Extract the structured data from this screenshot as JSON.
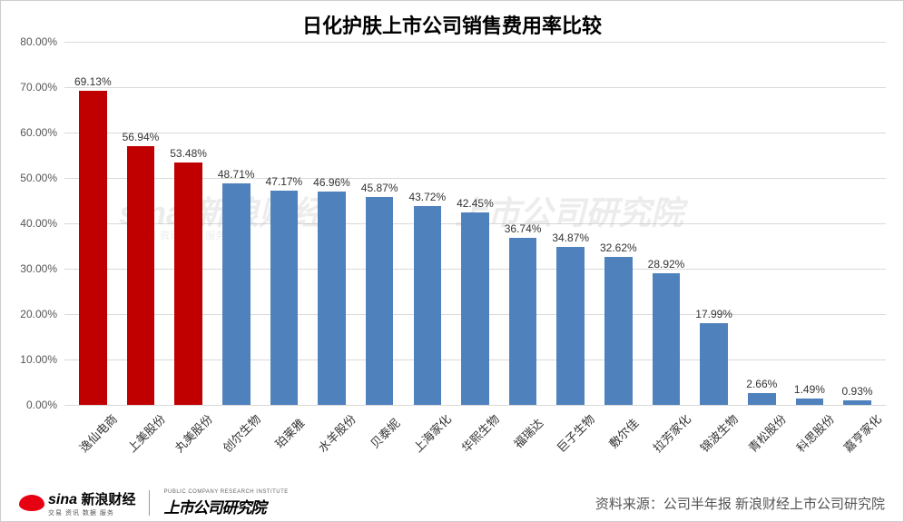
{
  "chart": {
    "type": "bar",
    "title": "日化护肤上市公司销售费用率比较",
    "title_fontsize": 22,
    "background_color": "#ffffff",
    "grid_color": "#d9d9d9",
    "text_color": "#555555",
    "ylim": [
      0,
      80
    ],
    "ytick_step": 10,
    "y_format": "percent_2dp",
    "yticks": [
      "0.00%",
      "10.00%",
      "20.00%",
      "30.00%",
      "40.00%",
      "50.00%",
      "60.00%",
      "70.00%",
      "80.00%"
    ],
    "label_fontsize": 12,
    "xlabel_fontsize": 13,
    "xlabel_rotation": -45,
    "bar_width_ratio": 0.58,
    "colors": {
      "highlight": "#c00000",
      "normal": "#4f81bd"
    },
    "categories": [
      "逸仙电商",
      "上美股份",
      "丸美股份",
      "创尔生物",
      "珀莱雅",
      "水羊股份",
      "贝泰妮",
      "上海家化",
      "华熙生物",
      "福瑞达",
      "巨子生物",
      "敷尔佳",
      "拉芳家化",
      "锦波生物",
      "青松股份",
      "科思股份",
      "嘉亨家化"
    ],
    "values": [
      69.13,
      56.94,
      53.48,
      48.71,
      47.17,
      46.96,
      45.87,
      43.72,
      42.45,
      36.74,
      34.87,
      32.62,
      28.92,
      17.99,
      2.66,
      1.49,
      0.93
    ],
    "value_labels": [
      "69.13%",
      "56.94%",
      "53.48%",
      "48.71%",
      "47.17%",
      "46.96%",
      "45.87%",
      "43.72%",
      "42.45%",
      "36.74%",
      "34.87%",
      "32.62%",
      "28.92%",
      "17.99%",
      "2.66%",
      "1.49%",
      "0.93%"
    ],
    "bar_color_keys": [
      "highlight",
      "highlight",
      "highlight",
      "normal",
      "normal",
      "normal",
      "normal",
      "normal",
      "normal",
      "normal",
      "normal",
      "normal",
      "normal",
      "normal",
      "normal",
      "normal",
      "normal"
    ]
  },
  "watermarks": {
    "left_main": "sina 新浪财经",
    "left_sub": "交易  资讯  数据  服务",
    "right_main": "上市公司研究院"
  },
  "footer": {
    "sina_en": "sina",
    "sina_cn": "新浪财经",
    "sina_sub": "交易  资讯  数据  服务",
    "institute_en": "PUBLIC COMPANY RESEARCH INSTITUTE",
    "institute_cn": "上市公司研究院",
    "source": "资料来源：公司半年报 新浪财经上市公司研究院"
  }
}
